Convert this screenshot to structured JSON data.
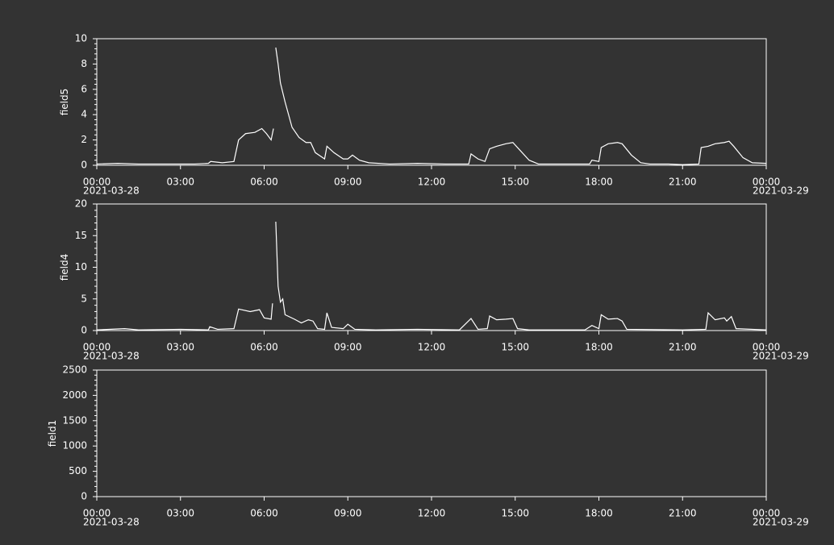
{
  "chart_data": [
    {
      "type": "line",
      "ylabel": "field5",
      "color": "#ffffff",
      "xlim": [
        "2021-03-28 00:00",
        "2021-03-29 00:00"
      ],
      "xticks": [
        {
          "value": "2021-03-28 00:00",
          "label": "00:00"
        },
        {
          "value": "2021-03-28 03:00",
          "label": "03:00"
        },
        {
          "value": "2021-03-28 06:00",
          "label": "06:00"
        },
        {
          "value": "2021-03-28 09:00",
          "label": "09:00"
        },
        {
          "value": "2021-03-28 12:00",
          "label": "12:00"
        },
        {
          "value": "2021-03-28 15:00",
          "label": "15:00"
        },
        {
          "value": "2021-03-28 18:00",
          "label": "18:00"
        },
        {
          "value": "2021-03-28 21:00",
          "label": "21:00"
        },
        {
          "value": "2021-03-29 00:00",
          "label": "00:00"
        }
      ],
      "xtick_sublabels": [
        "2021-03-28",
        null,
        null,
        null,
        null,
        null,
        null,
        null,
        "2021-03-29"
      ],
      "ylim": [
        0,
        10
      ],
      "yticks": [
        0,
        2,
        4,
        6,
        8,
        10
      ],
      "x": [
        "2021-03-28 00:00",
        "2021-03-28 00:45",
        "2021-03-28 01:30",
        "2021-03-28 02:30",
        "2021-03-28 03:30",
        "2021-03-28 04:00",
        "2021-03-28 04:05",
        "2021-03-28 04:30",
        "2021-03-28 04:55",
        "2021-03-28 05:05",
        "2021-03-28 05:20",
        "2021-03-28 05:40",
        "2021-03-28 05:55",
        "2021-03-28 06:05",
        "2021-03-28 06:15",
        "2021-03-28 06:20",
        "2021-03-28 06:22",
        "2021-03-28 06:25",
        "2021-03-28 06:30",
        "2021-03-28 06:35",
        "2021-03-28 06:45",
        "2021-03-28 07:00",
        "2021-03-28 07:15",
        "2021-03-28 07:30",
        "2021-03-28 07:40",
        "2021-03-28 07:50",
        "2021-03-28 08:10",
        "2021-03-28 08:15",
        "2021-03-28 08:30",
        "2021-03-28 08:50",
        "2021-03-28 09:00",
        "2021-03-28 09:10",
        "2021-03-28 09:25",
        "2021-03-28 09:45",
        "2021-03-28 10:30",
        "2021-03-28 11:30",
        "2021-03-28 12:30",
        "2021-03-28 13:20",
        "2021-03-28 13:25",
        "2021-03-28 13:40",
        "2021-03-28 13:55",
        "2021-03-28 14:05",
        "2021-03-28 14:20",
        "2021-03-28 14:40",
        "2021-03-28 14:55",
        "2021-03-28 15:10",
        "2021-03-28 15:30",
        "2021-03-28 15:50",
        "2021-03-28 17:00",
        "2021-03-28 17:40",
        "2021-03-28 17:45",
        "2021-03-28 18:00",
        "2021-03-28 18:05",
        "2021-03-28 18:20",
        "2021-03-28 18:40",
        "2021-03-28 18:50",
        "2021-03-28 19:10",
        "2021-03-28 19:30",
        "2021-03-28 19:50",
        "2021-03-28 20:30",
        "2021-03-28 21:00",
        "2021-03-28 21:35",
        "2021-03-28 21:40",
        "2021-03-28 21:55",
        "2021-03-28 22:10",
        "2021-03-28 22:30",
        "2021-03-28 22:40",
        "2021-03-28 22:50",
        "2021-03-28 23:10",
        "2021-03-28 23:30",
        "2021-03-29 00:00"
      ],
      "values": [
        0.1,
        0.15,
        0.1,
        0.1,
        0.1,
        0.15,
        0.3,
        0.2,
        0.3,
        2.0,
        2.5,
        2.6,
        2.9,
        2.5,
        2.0,
        2.9,
        null,
        9.3,
        8.0,
        6.5,
        5.0,
        3.0,
        2.2,
        1.8,
        1.8,
        1.0,
        0.5,
        1.5,
        1.0,
        0.5,
        0.5,
        0.8,
        0.4,
        0.2,
        0.1,
        0.15,
        0.1,
        0.1,
        0.9,
        0.5,
        0.3,
        1.3,
        1.5,
        1.7,
        1.8,
        1.2,
        0.4,
        0.1,
        0.1,
        0.1,
        0.4,
        0.3,
        1.4,
        1.7,
        1.8,
        1.7,
        0.8,
        0.2,
        0.1,
        0.1,
        0.05,
        0.1,
        1.4,
        1.5,
        1.7,
        1.8,
        1.9,
        1.5,
        0.6,
        0.2,
        0.15
      ]
    },
    {
      "type": "line",
      "ylabel": "field4",
      "color": "#ffffff",
      "xlim": [
        "2021-03-28 00:00",
        "2021-03-29 00:00"
      ],
      "xticks": [
        {
          "value": "2021-03-28 00:00",
          "label": "00:00"
        },
        {
          "value": "2021-03-28 03:00",
          "label": "03:00"
        },
        {
          "value": "2021-03-28 06:00",
          "label": "06:00"
        },
        {
          "value": "2021-03-28 09:00",
          "label": "09:00"
        },
        {
          "value": "2021-03-28 12:00",
          "label": "12:00"
        },
        {
          "value": "2021-03-28 15:00",
          "label": "15:00"
        },
        {
          "value": "2021-03-28 18:00",
          "label": "18:00"
        },
        {
          "value": "2021-03-28 21:00",
          "label": "21:00"
        },
        {
          "value": "2021-03-29 00:00",
          "label": "00:00"
        }
      ],
      "xtick_sublabels": [
        "2021-03-28",
        null,
        null,
        null,
        null,
        null,
        null,
        null,
        "2021-03-29"
      ],
      "ylim": [
        0,
        20
      ],
      "yticks": [
        0,
        5,
        10,
        15,
        20
      ],
      "x": [
        "2021-03-28 00:00",
        "2021-03-28 01:00",
        "2021-03-28 01:30",
        "2021-03-28 03:00",
        "2021-03-28 04:00",
        "2021-03-28 04:03",
        "2021-03-28 04:20",
        "2021-03-28 04:55",
        "2021-03-28 05:05",
        "2021-03-28 05:30",
        "2021-03-28 05:50",
        "2021-03-28 06:00",
        "2021-03-28 06:15",
        "2021-03-28 06:18",
        "2021-03-28 06:21",
        "2021-03-28 06:25",
        "2021-03-28 06:30",
        "2021-03-28 06:35",
        "2021-03-28 06:40",
        "2021-03-28 06:45",
        "2021-03-28 07:05",
        "2021-03-28 07:20",
        "2021-03-28 07:35",
        "2021-03-28 07:45",
        "2021-03-28 07:55",
        "2021-03-28 08:10",
        "2021-03-28 08:15",
        "2021-03-28 08:25",
        "2021-03-28 08:50",
        "2021-03-28 09:00",
        "2021-03-28 09:15",
        "2021-03-28 10:00",
        "2021-03-28 11:30",
        "2021-03-28 13:00",
        "2021-03-28 13:25",
        "2021-03-28 13:40",
        "2021-03-28 14:00",
        "2021-03-28 14:05",
        "2021-03-28 14:20",
        "2021-03-28 14:40",
        "2021-03-28 14:55",
        "2021-03-28 15:05",
        "2021-03-28 15:30",
        "2021-03-28 17:30",
        "2021-03-28 17:45",
        "2021-03-28 18:00",
        "2021-03-28 18:05",
        "2021-03-28 18:20",
        "2021-03-28 18:40",
        "2021-03-28 18:50",
        "2021-03-28 19:00",
        "2021-03-28 21:00",
        "2021-03-28 21:50",
        "2021-03-28 21:55",
        "2021-03-28 22:10",
        "2021-03-28 22:30",
        "2021-03-28 22:35",
        "2021-03-28 22:45",
        "2021-03-28 22:55",
        "2021-03-29 00:00"
      ],
      "values": [
        0.1,
        0.3,
        0.1,
        0.2,
        0.1,
        0.6,
        0.2,
        0.3,
        3.4,
        3.0,
        3.3,
        2.0,
        1.8,
        4.3,
        null,
        17.2,
        7.0,
        4.5,
        5.0,
        2.5,
        1.8,
        1.2,
        1.7,
        1.5,
        0.3,
        0.2,
        2.8,
        0.5,
        0.3,
        1.0,
        0.2,
        0.1,
        0.2,
        0.1,
        1.9,
        0.2,
        0.3,
        2.3,
        1.7,
        1.8,
        1.9,
        0.3,
        0.1,
        0.1,
        0.8,
        0.3,
        2.5,
        1.8,
        1.9,
        1.5,
        0.2,
        0.1,
        0.2,
        2.8,
        1.7,
        2.0,
        1.5,
        2.2,
        0.3,
        0.1
      ]
    },
    {
      "type": "line",
      "ylabel": "field1",
      "color": "#ffffff",
      "xlim": [
        "2021-03-28 00:00",
        "2021-03-29 00:00"
      ],
      "xticks": [
        {
          "value": "2021-03-28 00:00",
          "label": "00:00"
        },
        {
          "value": "2021-03-28 03:00",
          "label": "03:00"
        },
        {
          "value": "2021-03-28 06:00",
          "label": "06:00"
        },
        {
          "value": "2021-03-28 09:00",
          "label": "09:00"
        },
        {
          "value": "2021-03-28 12:00",
          "label": "12:00"
        },
        {
          "value": "2021-03-28 15:00",
          "label": "15:00"
        },
        {
          "value": "2021-03-28 18:00",
          "label": "18:00"
        },
        {
          "value": "2021-03-28 21:00",
          "label": "21:00"
        },
        {
          "value": "2021-03-29 00:00",
          "label": "00:00"
        }
      ],
      "xtick_sublabels": [
        "2021-03-28",
        null,
        null,
        null,
        null,
        null,
        null,
        null,
        "2021-03-29"
      ],
      "ylim": [
        0,
        2500
      ],
      "yticks": [
        0,
        500,
        1000,
        1500,
        2000,
        2500
      ],
      "x": [],
      "values": []
    }
  ]
}
